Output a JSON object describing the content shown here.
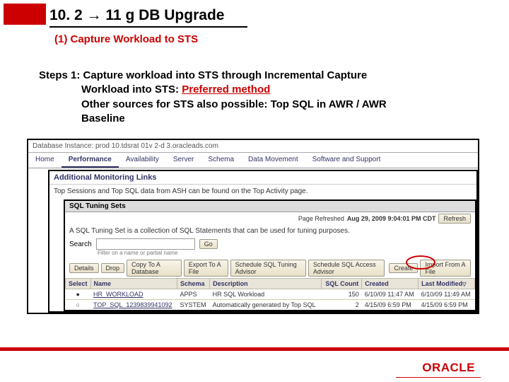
{
  "title": {
    "pre": "10. 2",
    "arrow": "→",
    "post": "11 g DB Upgrade"
  },
  "subtitle": "(1) Capture Workload to STS",
  "steps": {
    "l1": "Steps 1: Capture workload into STS through Incremental Capture",
    "l2a": "Workload into STS: ",
    "l2b": "Preferred method",
    "l3": "Other sources for STS also possible: Top SQL in AWR / AWR",
    "l4": "Baseline"
  },
  "em": {
    "instance_label": "Database Instance: prod 10.tdsrat 01v 2-d 3.oracleads.com",
    "tabs": [
      "Home",
      "Performance",
      "Availability",
      "Server",
      "Schema",
      "Data Movement",
      "Software and Support"
    ],
    "mon_head": "Additional Monitoring Links",
    "mon_body": "Top Sessions and Top SQL data from ASH can be found on the Top Activity page.",
    "sts_bar": "SQL Tuning Sets",
    "refresh_pre": "Page Refreshed",
    "refresh_ts": "Aug 29, 2009 9:04:01 PM CDT",
    "refresh_btn": "Refresh",
    "sts_desc": "A SQL Tuning Set is a collection of SQL Statements that can be used for tuning purposes.",
    "search_label": "Search",
    "go_btn": "Go",
    "search_hint": "Filter on a name or partial name",
    "actions": [
      "Details",
      "Drop",
      "Copy To A Database",
      "Export To A File",
      "Schedule SQL Tuning Advisor",
      "Schedule SQL Access Advisor"
    ],
    "create_btn": "Create",
    "import_btn": "Import From A File",
    "cols": [
      "Select",
      "Name",
      "Schema",
      "Description",
      "SQL Count",
      "Created",
      "Last Modified"
    ],
    "rows": [
      {
        "sel": "●",
        "name": "HR_WORKLOAD",
        "schema": "APPS",
        "desc": "HR SQL Workload",
        "count": "150",
        "created": "6/10/09 11:47 AM",
        "mod": "6/10/09 11:49 AM"
      },
      {
        "sel": "○",
        "name": "TOP_SQL_1239839941092",
        "schema": "SYSTEM",
        "desc": "Automatically generated by Top SQL",
        "count": "2",
        "created": "4/15/09 6:59 PM",
        "mod": "4/15/09 6:59 PM"
      }
    ]
  },
  "logo": "ORACLE"
}
